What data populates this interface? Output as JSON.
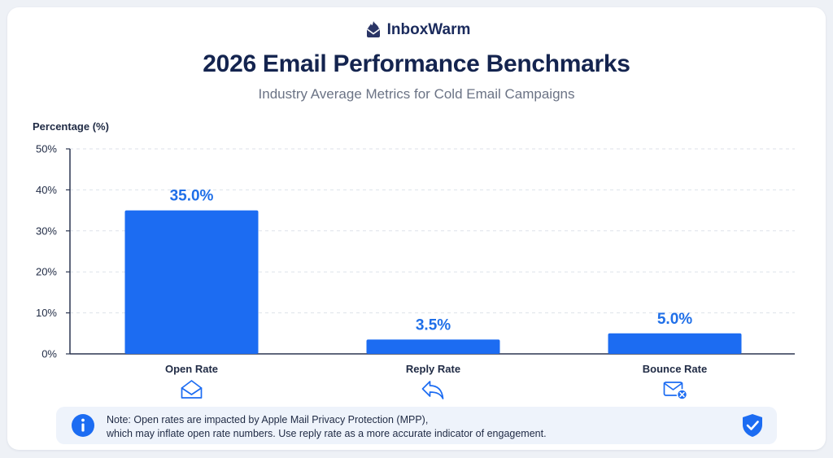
{
  "brand": {
    "name": "InboxWarm",
    "icon": "flame-envelope-icon"
  },
  "header": {
    "title": "2026 Email Performance Benchmarks",
    "subtitle": "Industry Average Metrics for Cold Email Campaigns"
  },
  "chart_data": {
    "type": "bar",
    "ylabel": "Percentage (%)",
    "xlabel": "",
    "ylim": [
      0,
      50
    ],
    "yticks": [
      0,
      10,
      20,
      30,
      40,
      50
    ],
    "ytick_labels": [
      "0%",
      "10%",
      "20%",
      "30%",
      "40%",
      "50%"
    ],
    "grid": true,
    "categories": [
      "Open Rate",
      "Reply Rate",
      "Bounce Rate"
    ],
    "values": [
      35.0,
      3.5,
      5.0
    ],
    "value_labels": [
      "35.0%",
      "3.5%",
      "5.0%"
    ],
    "category_icons": [
      "envelope-open-icon",
      "reply-arrow-icon",
      "envelope-x-icon"
    ],
    "bar_color": "#1c6cf2",
    "label_color": "#1f6fe8"
  },
  "note": {
    "line1": "Note: Open rates are impacted by Apple Mail Privacy Protection (MPP),",
    "line2": "which may inflate open rate numbers. Use reply rate as a more accurate indicator of engagement.",
    "info_icon": "info-icon",
    "badge_icon": "shield-check-icon"
  }
}
